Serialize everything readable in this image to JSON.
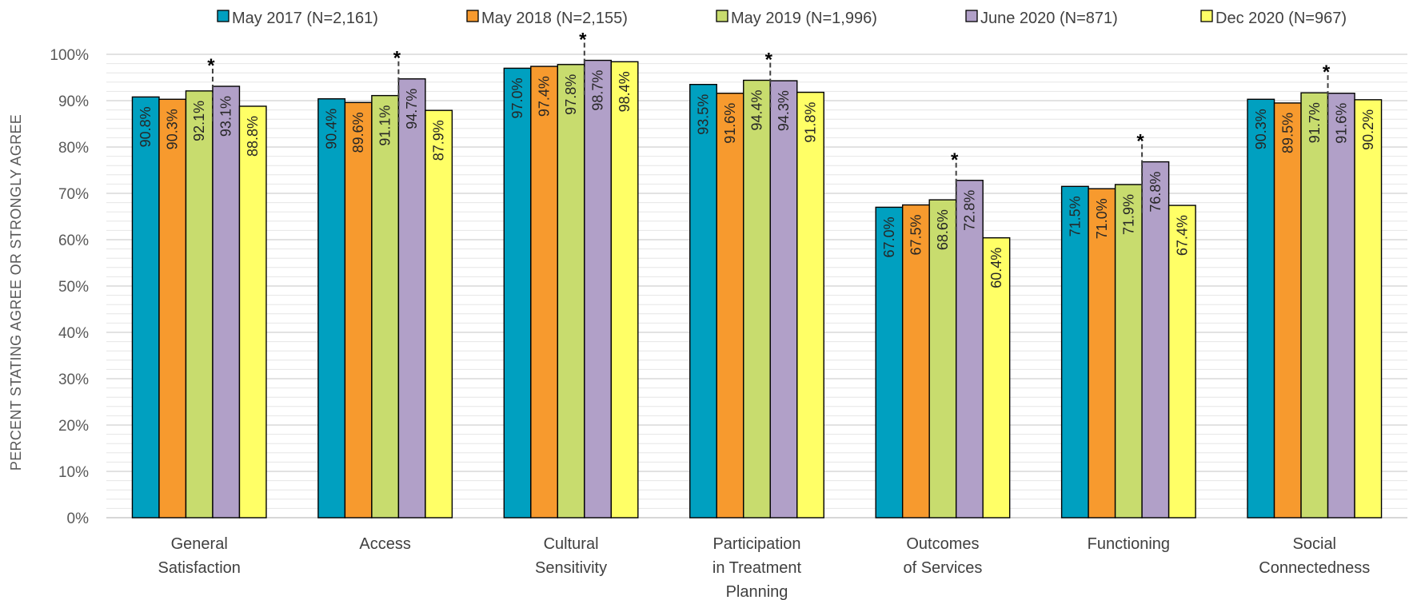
{
  "chart_data": {
    "type": "bar",
    "title": "",
    "xlabel": "",
    "ylabel": "PERCENT STATING AGREE OR STRONGLY AGREE",
    "ylim": [
      0,
      100
    ],
    "yticks": [
      "0%",
      "10%",
      "20%",
      "30%",
      "40%",
      "50%",
      "60%",
      "70%",
      "80%",
      "90%",
      "100%"
    ],
    "grid": true,
    "legend_position": "top",
    "categories": [
      [
        "General",
        "Satisfaction"
      ],
      [
        "Access"
      ],
      [
        "Cultural",
        "Sensitivity"
      ],
      [
        "Participation",
        "in Treatment",
        "Planning"
      ],
      [
        "Outcomes",
        "of Services"
      ],
      [
        "Functioning"
      ],
      [
        "Social",
        "Connectedness"
      ]
    ],
    "series": [
      {
        "name": "May 2017 (N=2,161)",
        "color": "#00A0C0",
        "values": [
          90.8,
          90.4,
          97.0,
          93.5,
          67.0,
          71.5,
          90.3
        ],
        "labels": [
          "90.8%",
          "90.4%",
          "97.0%",
          "93.5%",
          "67.0%",
          "71.5%",
          "90.3%"
        ]
      },
      {
        "name": "May 2018 (N=2,155)",
        "color": "#F79A2E",
        "values": [
          90.3,
          89.6,
          97.4,
          91.6,
          67.5,
          71.0,
          89.5
        ],
        "labels": [
          "90.3%",
          "89.6%",
          "97.4%",
          "91.6%",
          "67.5%",
          "71.0%",
          "89.5%"
        ]
      },
      {
        "name": "May 2019 (N=1,996)",
        "color": "#C8DC6E",
        "values": [
          92.1,
          91.1,
          97.8,
          94.4,
          68.6,
          71.9,
          91.7
        ],
        "labels": [
          "92.1%",
          "91.1%",
          "97.8%",
          "94.4%",
          "68.6%",
          "71.9%",
          "91.7%"
        ]
      },
      {
        "name": "June 2020 (N=871)",
        "color": "#B1A0C8",
        "values": [
          93.1,
          94.7,
          98.7,
          94.3,
          72.8,
          76.8,
          91.6
        ],
        "labels": [
          "93.1%",
          "94.7%",
          "98.7%",
          "94.3%",
          "72.8%",
          "76.8%",
          "91.6%"
        ]
      },
      {
        "name": "Dec 2020 (N=967)",
        "color": "#FFFF66",
        "values": [
          88.8,
          87.9,
          98.4,
          91.8,
          60.4,
          67.4,
          90.2
        ],
        "labels": [
          "88.8%",
          "87.9%",
          "98.4%",
          "91.8%",
          "60.4%",
          "67.4%",
          "90.2%"
        ]
      }
    ],
    "annotations": [
      {
        "text": "*",
        "category_index": 0
      },
      {
        "text": "*",
        "category_index": 1
      },
      {
        "text": "*",
        "category_index": 2
      },
      {
        "text": "*",
        "category_index": 3
      },
      {
        "text": "*",
        "category_index": 4
      },
      {
        "text": "*",
        "category_index": 5
      },
      {
        "text": "*",
        "category_index": 6
      }
    ]
  }
}
